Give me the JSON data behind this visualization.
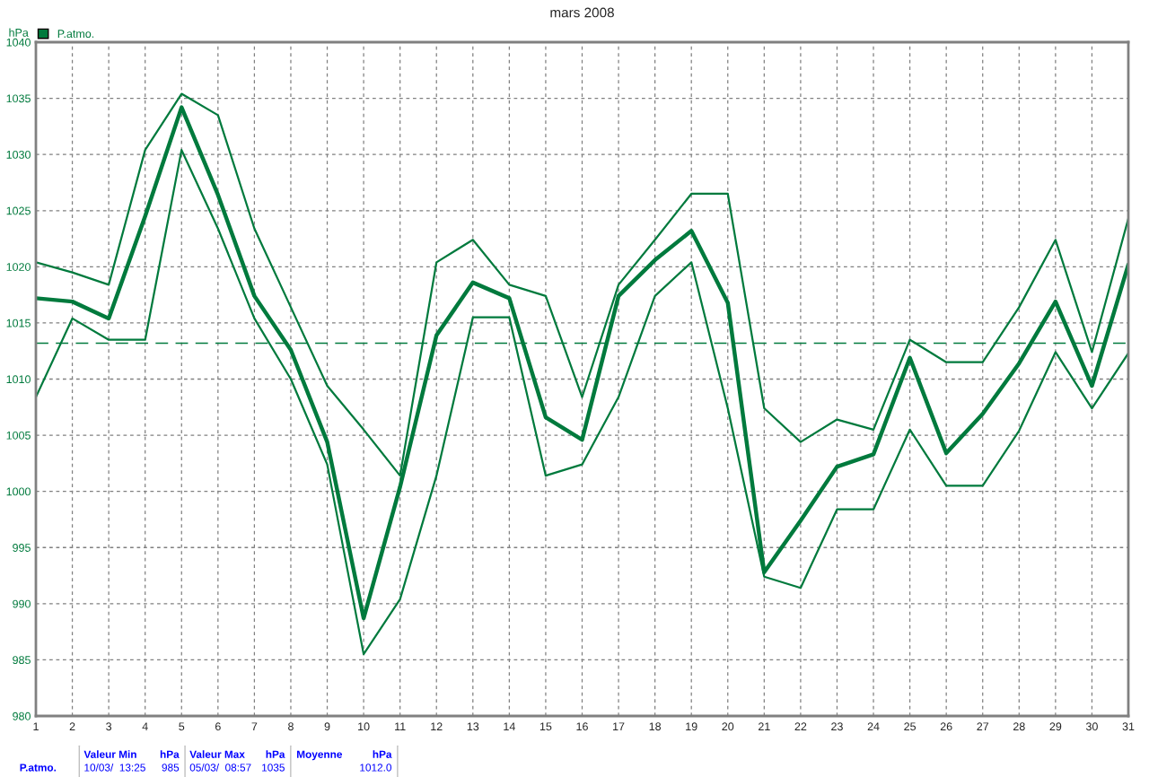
{
  "chart_data": {
    "type": "line",
    "title": "mars 2008",
    "ylabel": "hPa",
    "x": [
      1,
      2,
      3,
      4,
      5,
      6,
      7,
      8,
      9,
      10,
      11,
      12,
      13,
      14,
      15,
      16,
      17,
      18,
      19,
      20,
      21,
      22,
      23,
      24,
      25,
      26,
      27,
      28,
      29,
      30,
      31
    ],
    "series": [
      {
        "color": "#007a3d",
        "values": [
          1020.4,
          1019.5,
          1018.4,
          1030.4,
          1035.4,
          1033.5,
          1023.4,
          1016.4,
          1009.4,
          1005.5,
          1001.4,
          1020.4,
          1022.4,
          1018.4,
          1017.4,
          1008.4,
          1018.4,
          1022.4,
          1026.5,
          1026.5,
          1007.4,
          1004.4,
          1006.4,
          1005.5,
          1013.5,
          1011.5,
          1011.5,
          1016.4,
          1022.4,
          1012.4,
          1024.3
        ]
      },
      {
        "name": "P.atmo.",
        "color": "#007a3d",
        "values": [
          1017.2,
          1016.9,
          1015.4,
          1024.5,
          1034.2,
          1026.4,
          1017.4,
          1012.6,
          1004.4,
          988.7,
          1000.4,
          1013.9,
          1018.6,
          1017.2,
          1006.6,
          1004.6,
          1017.4,
          1020.6,
          1023.2,
          1016.8,
          992.8,
          997.4,
          1002.2,
          1003.3,
          1011.9,
          1003.4,
          1006.9,
          1011.4,
          1016.9,
          1009.4,
          1020.2
        ]
      },
      {
        "color": "#007a3d",
        "values": [
          1008.4,
          1015.4,
          1013.5,
          1013.5,
          1030.4,
          1023.4,
          1015.4,
          1010.0,
          1002.4,
          985.5,
          990.4,
          1001.4,
          1015.5,
          1015.5,
          1001.4,
          1002.4,
          1008.4,
          1017.4,
          1020.4,
          1007.4,
          992.4,
          991.4,
          998.4,
          998.4,
          1005.5,
          1000.5,
          1000.5,
          1005.4,
          1012.4,
          1007.4,
          1012.3
        ]
      }
    ],
    "xlim": [
      1,
      31
    ],
    "xticks": [
      1,
      2,
      3,
      4,
      5,
      6,
      7,
      8,
      9,
      10,
      11,
      12,
      13,
      14,
      15,
      16,
      17,
      18,
      19,
      20,
      21,
      22,
      23,
      24,
      25,
      26,
      27,
      28,
      29,
      30,
      31
    ],
    "ylim": [
      980,
      1040
    ],
    "yticks": [
      980,
      985,
      990,
      995,
      1000,
      1005,
      1010,
      1015,
      1020,
      1025,
      1030,
      1035,
      1040
    ],
    "ref_lines": [
      {
        "axis": "y",
        "value": 1013.2,
        "color": "#007a3d",
        "line_style": "dashed"
      }
    ],
    "grid": true,
    "legend": "top left",
    "marker": "none",
    "line_style": "solid",
    "annotations": [
      "P.atmo.",
      "Valeur Min",
      "hPa",
      "10/03/  13:25",
      "985",
      "Valeur Max",
      "hPa",
      "05/03/  08:57",
      "1035",
      "Moyenne",
      "hPa",
      "1012.0"
    ]
  }
}
